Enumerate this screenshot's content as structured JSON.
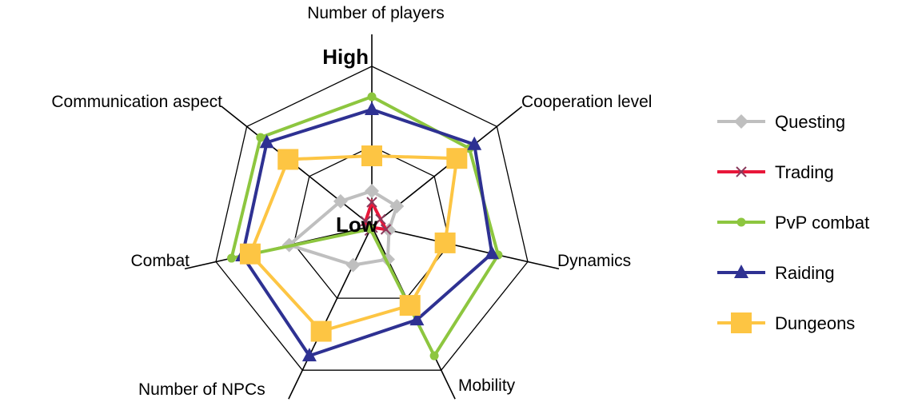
{
  "chart_data": {
    "type": "radar",
    "axes": [
      "Number of players",
      "Cooperation level",
      "Dynamics",
      "Mobility",
      "Number of NPCs",
      "Combat",
      "Communication aspect"
    ],
    "scale_labels": {
      "high": "High",
      "low": "Low"
    },
    "range": [
      0,
      100
    ],
    "grid": true,
    "legend_position": "right",
    "series": [
      {
        "name": "Questing",
        "color": "#bfbfbf",
        "marker": "diamond",
        "values": [
          22,
          20,
          11,
          23,
          27,
          53,
          25
        ]
      },
      {
        "name": "Trading",
        "color": "#e8173a",
        "marker": "x",
        "values": [
          15,
          7,
          9,
          1,
          3,
          3,
          5
        ]
      },
      {
        "name": "PvP combat",
        "color": "#8dc63f",
        "marker": "circle",
        "values": [
          81,
          78,
          81,
          90,
          2,
          90,
          89
        ]
      },
      {
        "name": "Raiding",
        "color": "#2e3192",
        "marker": "triangle",
        "values": [
          73,
          82,
          77,
          65,
          90,
          83,
          84
        ]
      },
      {
        "name": "Dungeons",
        "color": "#fdc543",
        "marker": "square",
        "values": [
          44,
          68,
          47,
          55,
          73,
          78,
          67
        ]
      }
    ]
  }
}
